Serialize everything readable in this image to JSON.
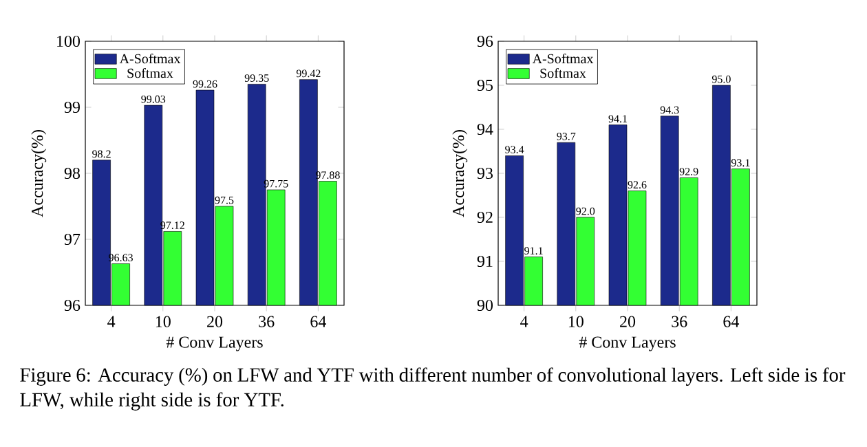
{
  "chart_data": [
    {
      "type": "bar",
      "xlabel": "# Conv Layers",
      "ylabel": "Accuracy(%)",
      "categories": [
        "4",
        "10",
        "20",
        "36",
        "64"
      ],
      "ylim": [
        96,
        100
      ],
      "yticks": [
        96,
        97,
        98,
        99,
        100
      ],
      "legend": "top left",
      "series": [
        {
          "name": "A-Softmax",
          "color": "#1c2a8c",
          "values": [
            98.2,
            99.03,
            99.26,
            99.35,
            99.42
          ],
          "value_labels": [
            "98.2",
            "99.03",
            "99.26",
            "99.35",
            "99.42"
          ]
        },
        {
          "name": "Softmax",
          "color": "#33ff33",
          "values": [
            96.63,
            97.12,
            97.5,
            97.75,
            97.88
          ],
          "value_labels": [
            "96.63",
            "97.12",
            "97.5",
            "97.75",
            "97.88"
          ]
        }
      ]
    },
    {
      "type": "bar",
      "xlabel": "# Conv Layers",
      "ylabel": "Accuracy(%)",
      "categories": [
        "4",
        "10",
        "20",
        "36",
        "64"
      ],
      "ylim": [
        90,
        96
      ],
      "yticks": [
        90,
        91,
        92,
        93,
        94,
        95,
        96
      ],
      "legend": "top left",
      "series": [
        {
          "name": "A-Softmax",
          "color": "#1c2a8c",
          "values": [
            93.4,
            93.7,
            94.1,
            94.3,
            95.0
          ],
          "value_labels": [
            "93.4",
            "93.7",
            "94.1",
            "94.3",
            "95.0"
          ]
        },
        {
          "name": "Softmax",
          "color": "#33ff33",
          "values": [
            91.1,
            92.0,
            92.6,
            92.9,
            93.1
          ],
          "value_labels": [
            "91.1",
            "92.0",
            "92.6",
            "92.9",
            "93.1"
          ]
        }
      ]
    },
    {
      "type": "other",
      "annotations": [
        "Figure 6: Accuracy (%) on LFW and YTF with different number of convolutional layers. Left side is for LFW, while right side is for YTF."
      ]
    }
  ]
}
